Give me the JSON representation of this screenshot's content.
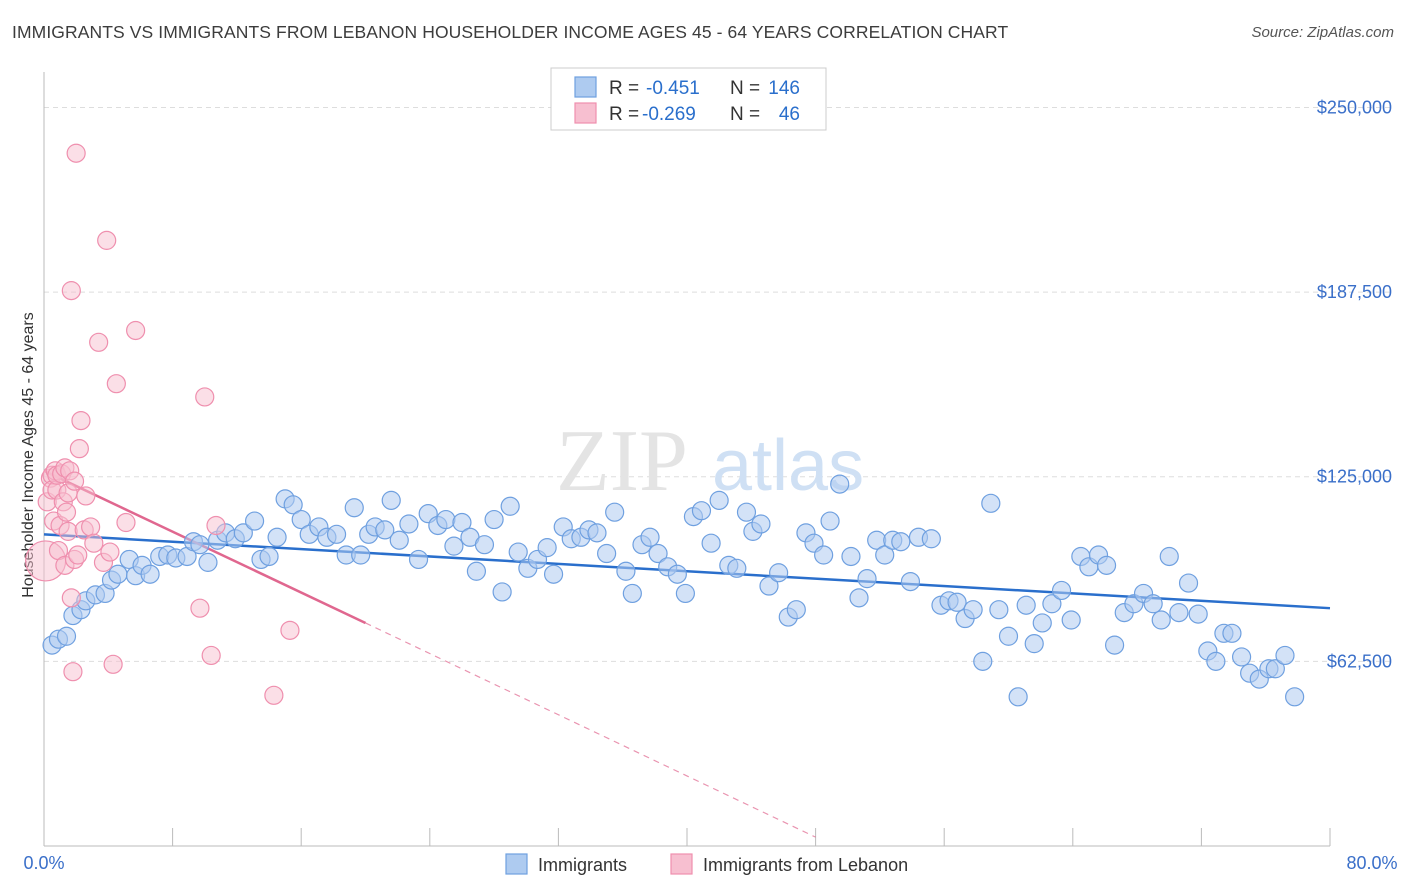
{
  "header": {
    "title": "IMMIGRANTS VS IMMIGRANTS FROM LEBANON HOUSEHOLDER INCOME AGES 45 - 64 YEARS CORRELATION CHART",
    "source": "Source: ZipAtlas.com"
  },
  "watermark": {
    "zip": "ZIP",
    "atlas": "atlas"
  },
  "colors": {
    "blue_fill": "#aecbf0",
    "blue_stroke": "#6fa0e0",
    "blue_line": "#2a6fcc",
    "pink_fill": "#f7bfd0",
    "pink_stroke": "#ef8fae",
    "pink_line": "#e0678f",
    "tick_text": "#3a6fc9",
    "grid": "#dddddd"
  },
  "legend": {
    "rows": [
      {
        "r_label": "R =",
        "r_value": "-0.451",
        "n_label": "N =",
        "n_value": "146"
      },
      {
        "r_label": "R =",
        "r_value": "-0.269",
        "n_label": "N =",
        "n_value": "46"
      }
    ]
  },
  "chart_data": {
    "type": "scatter",
    "title": "IMMIGRANTS VS IMMIGRANTS FROM LEBANON HOUSEHOLDER INCOME AGES 45 - 64 YEARS CORRELATION CHART",
    "xlabel": "",
    "ylabel": "Householder Income Ages 45 - 64 years",
    "xlim": [
      0,
      80
    ],
    "ylim": [
      0,
      262000
    ],
    "x_tick_labels": [
      "0.0%",
      "80.0%"
    ],
    "y_ticks": [
      62500,
      125000,
      187500,
      250000
    ],
    "y_tick_labels": [
      "$62,500",
      "$125,000",
      "$187,500",
      "$250,000"
    ],
    "grid": true,
    "legend_position": "top-center",
    "series": [
      {
        "name": "Immigrants",
        "color": "#aecbf0",
        "trend": {
          "x0": 0,
          "y0": 105500,
          "x1": 80,
          "y1": 80500
        },
        "points": [
          [
            0.5,
            68000
          ],
          [
            0.9,
            70000
          ],
          [
            1.4,
            71000
          ],
          [
            1.8,
            78000
          ],
          [
            2.3,
            80000
          ],
          [
            2.6,
            83000
          ],
          [
            3.2,
            85000
          ],
          [
            3.8,
            85500
          ],
          [
            4.2,
            90000
          ],
          [
            4.6,
            92000
          ],
          [
            5.3,
            97000
          ],
          [
            5.7,
            91500
          ],
          [
            6.1,
            95000
          ],
          [
            6.6,
            92000
          ],
          [
            7.2,
            98000
          ],
          [
            7.7,
            98500
          ],
          [
            8.2,
            97500
          ],
          [
            8.9,
            98000
          ],
          [
            9.3,
            103000
          ],
          [
            9.7,
            102000
          ],
          [
            10.2,
            96000
          ],
          [
            10.8,
            103500
          ],
          [
            11.3,
            106000
          ],
          [
            11.9,
            104000
          ],
          [
            12.4,
            106000
          ],
          [
            13.1,
            110000
          ],
          [
            13.5,
            97000
          ],
          [
            14.0,
            98000
          ],
          [
            14.5,
            104500
          ],
          [
            15.0,
            117500
          ],
          [
            15.5,
            115500
          ],
          [
            16.0,
            110500
          ],
          [
            16.5,
            105500
          ],
          [
            17.1,
            108000
          ],
          [
            17.6,
            104500
          ],
          [
            18.2,
            105500
          ],
          [
            18.8,
            98500
          ],
          [
            19.3,
            114500
          ],
          [
            19.7,
            98500
          ],
          [
            20.2,
            105500
          ],
          [
            20.6,
            108000
          ],
          [
            21.2,
            107000
          ],
          [
            21.6,
            117000
          ],
          [
            22.1,
            103500
          ],
          [
            22.7,
            109000
          ],
          [
            23.3,
            97000
          ],
          [
            23.9,
            112500
          ],
          [
            24.5,
            108500
          ],
          [
            25.0,
            110500
          ],
          [
            25.5,
            101500
          ],
          [
            26.0,
            109500
          ],
          [
            26.5,
            104500
          ],
          [
            26.9,
            93000
          ],
          [
            27.4,
            102000
          ],
          [
            28.0,
            110500
          ],
          [
            28.5,
            86000
          ],
          [
            29.0,
            115000
          ],
          [
            29.5,
            99500
          ],
          [
            30.1,
            94000
          ],
          [
            30.7,
            97000
          ],
          [
            31.3,
            101000
          ],
          [
            31.7,
            92000
          ],
          [
            32.3,
            108000
          ],
          [
            32.8,
            104000
          ],
          [
            33.4,
            104500
          ],
          [
            33.9,
            107000
          ],
          [
            34.4,
            106000
          ],
          [
            35.0,
            99000
          ],
          [
            35.5,
            113000
          ],
          [
            36.2,
            93000
          ],
          [
            36.6,
            85500
          ],
          [
            37.2,
            102000
          ],
          [
            37.7,
            104500
          ],
          [
            38.2,
            99000
          ],
          [
            38.8,
            94500
          ],
          [
            39.4,
            92000
          ],
          [
            39.9,
            85500
          ],
          [
            40.4,
            111500
          ],
          [
            40.9,
            113500
          ],
          [
            41.5,
            102500
          ],
          [
            42.0,
            117000
          ],
          [
            42.6,
            95000
          ],
          [
            43.1,
            94000
          ],
          [
            43.7,
            113000
          ],
          [
            44.1,
            106500
          ],
          [
            44.6,
            109000
          ],
          [
            45.1,
            88000
          ],
          [
            45.7,
            92500
          ],
          [
            46.3,
            77500
          ],
          [
            46.8,
            80000
          ],
          [
            47.4,
            106000
          ],
          [
            47.9,
            102500
          ],
          [
            48.5,
            98500
          ],
          [
            48.9,
            110000
          ],
          [
            49.5,
            122500
          ],
          [
            50.2,
            98000
          ],
          [
            50.7,
            84000
          ],
          [
            51.2,
            90500
          ],
          [
            51.8,
            103500
          ],
          [
            52.3,
            98500
          ],
          [
            52.8,
            103500
          ],
          [
            53.3,
            103000
          ],
          [
            53.9,
            89500
          ],
          [
            54.4,
            104500
          ],
          [
            55.2,
            104000
          ],
          [
            55.8,
            81500
          ],
          [
            56.3,
            83000
          ],
          [
            56.8,
            82500
          ],
          [
            57.3,
            77000
          ],
          [
            57.8,
            80000
          ],
          [
            58.4,
            62500
          ],
          [
            58.9,
            116000
          ],
          [
            59.4,
            80000
          ],
          [
            60.0,
            71000
          ],
          [
            60.6,
            50500
          ],
          [
            61.1,
            81500
          ],
          [
            61.6,
            68500
          ],
          [
            62.1,
            75500
          ],
          [
            62.7,
            82000
          ],
          [
            63.3,
            86500
          ],
          [
            63.9,
            76500
          ],
          [
            64.5,
            98000
          ],
          [
            65.0,
            94500
          ],
          [
            65.6,
            98500
          ],
          [
            66.1,
            95000
          ],
          [
            66.6,
            68000
          ],
          [
            67.2,
            79000
          ],
          [
            67.8,
            82000
          ],
          [
            68.4,
            85500
          ],
          [
            69.0,
            82000
          ],
          [
            69.5,
            76500
          ],
          [
            70.0,
            98000
          ],
          [
            70.6,
            79000
          ],
          [
            71.2,
            89000
          ],
          [
            71.8,
            78500
          ],
          [
            72.4,
            66000
          ],
          [
            72.9,
            62500
          ],
          [
            73.4,
            72000
          ],
          [
            73.9,
            72000
          ],
          [
            74.5,
            64000
          ],
          [
            75.0,
            58500
          ],
          [
            75.6,
            56500
          ],
          [
            76.2,
            60000
          ],
          [
            76.6,
            60000
          ],
          [
            77.2,
            64500
          ],
          [
            77.8,
            50500
          ]
        ]
      },
      {
        "name": "Immigrants from Lebanon",
        "color": "#f7bfd0",
        "trend": {
          "x0": 0,
          "y0": 127000,
          "x1": 20,
          "y1": 75500
        },
        "trend_extension": {
          "x0": 20,
          "y0": 75500,
          "x1": 48,
          "y1": 3000
        },
        "points": [
          [
            0.1,
            96500
          ],
          [
            0.2,
            116500
          ],
          [
            0.4,
            124500
          ],
          [
            0.5,
            125500
          ],
          [
            0.5,
            120500
          ],
          [
            0.6,
            110000
          ],
          [
            0.7,
            127000
          ],
          [
            0.8,
            120500
          ],
          [
            0.8,
            125500
          ],
          [
            0.9,
            100000
          ],
          [
            1.0,
            108500
          ],
          [
            1.1,
            126000
          ],
          [
            1.2,
            116500
          ],
          [
            1.3,
            128000
          ],
          [
            1.3,
            95000
          ],
          [
            1.4,
            113000
          ],
          [
            1.5,
            119500
          ],
          [
            1.5,
            106500
          ],
          [
            1.6,
            127000
          ],
          [
            1.7,
            84000
          ],
          [
            1.7,
            188000
          ],
          [
            1.8,
            59000
          ],
          [
            1.9,
            97000
          ],
          [
            1.9,
            123500
          ],
          [
            2.0,
            234500
          ],
          [
            2.1,
            98500
          ],
          [
            2.2,
            134500
          ],
          [
            2.3,
            144000
          ],
          [
            2.5,
            107000
          ],
          [
            2.6,
            118500
          ],
          [
            2.9,
            108000
          ],
          [
            3.1,
            102500
          ],
          [
            3.4,
            170500
          ],
          [
            3.7,
            96000
          ],
          [
            3.9,
            205000
          ],
          [
            4.1,
            99500
          ],
          [
            4.3,
            61500
          ],
          [
            4.5,
            156500
          ],
          [
            5.1,
            109500
          ],
          [
            5.7,
            174500
          ],
          [
            9.7,
            80500
          ],
          [
            10.0,
            152000
          ],
          [
            10.4,
            64500
          ],
          [
            10.7,
            108500
          ],
          [
            14.3,
            51000
          ],
          [
            15.3,
            73000
          ]
        ]
      }
    ]
  },
  "bottom_legend": {
    "items": [
      {
        "label": "Immigrants"
      },
      {
        "label": "Immigrants from Lebanon"
      }
    ]
  }
}
